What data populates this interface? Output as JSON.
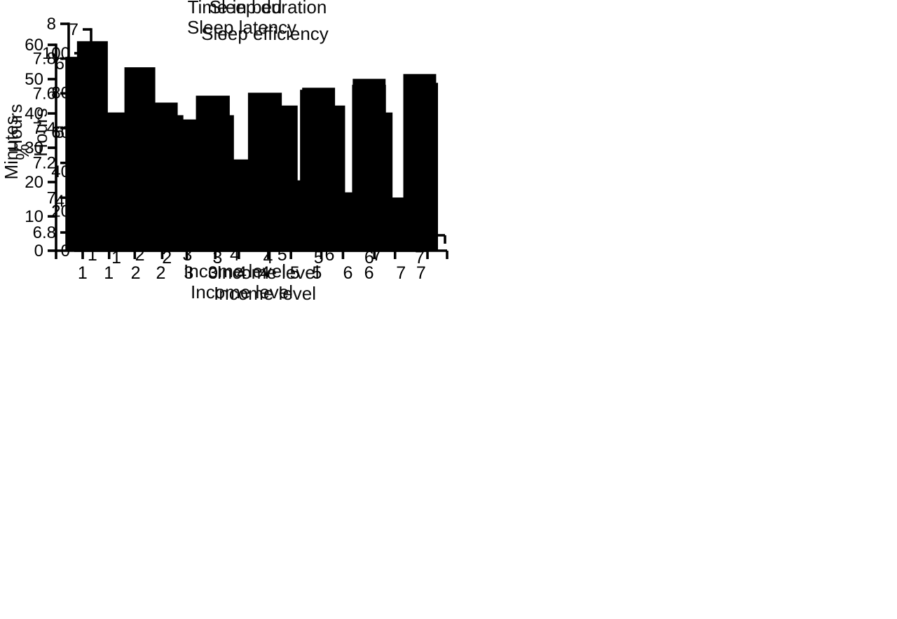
{
  "colors": {
    "bar": "#000000",
    "axis": "#000000",
    "text": "#000000",
    "background": "#ffffff"
  },
  "chart_data": [
    {
      "type": "bar",
      "position": "top-left",
      "title": "Time in bed",
      "xlabel": "Income level",
      "ylabel": "Hours",
      "categories": [
        "1",
        "2",
        "3",
        "4",
        "5",
        "6",
        "7"
      ],
      "values": [
        7.9,
        7.75,
        7.45,
        7.22,
        7.53,
        7.53,
        7.49
      ],
      "ylim": [
        6.8,
        8
      ],
      "yticks": [
        "6.8",
        "7",
        "7.2",
        "7.4",
        "7.6",
        "7.8",
        "8"
      ],
      "grid": false,
      "legend": "none"
    },
    {
      "type": "bar",
      "position": "top-right",
      "title": "Sleep duration",
      "xlabel": "Income level",
      "ylabel": "Hours",
      "categories": [
        "1",
        "2",
        "3",
        "4",
        "5",
        "6",
        "7"
      ],
      "values": [
        5.4,
        5.75,
        5.75,
        5.7,
        6.15,
        6.28,
        6.35
      ],
      "ylim": [
        4,
        7
      ],
      "yticks": [
        "4",
        "4.5",
        "5",
        "5.5",
        "6",
        "6.5",
        "7"
      ],
      "grid": false,
      "legend": "none"
    },
    {
      "type": "bar",
      "position": "bottom-left",
      "title": "Sleep latency",
      "xlabel": "Income level",
      "ylabel": "Minutes",
      "categories": [
        "1",
        "2",
        "3",
        "4",
        "5",
        "6",
        "7"
      ],
      "values": [
        56.5,
        34.5,
        22.5,
        24.5,
        20.5,
        17,
        15.5
      ],
      "ylim": [
        0,
        60
      ],
      "yticks": [
        "0",
        "10",
        "20",
        "30",
        "40",
        "50",
        "60"
      ],
      "grid": false,
      "legend": "none"
    },
    {
      "type": "bar",
      "position": "bottom-right",
      "title": "Sleep efficiency",
      "xlabel": "Income level",
      "ylabel": "%",
      "categories": [
        "1",
        "2",
        "3",
        "4",
        "5",
        "6",
        "7"
      ],
      "values": [
        70,
        75,
        78.5,
        80,
        81.5,
        84,
        85
      ],
      "ylim": [
        0,
        100
      ],
      "yticks": [
        "0",
        "20",
        "40",
        "60",
        "80",
        "100"
      ],
      "grid": false,
      "legend": "none"
    }
  ]
}
